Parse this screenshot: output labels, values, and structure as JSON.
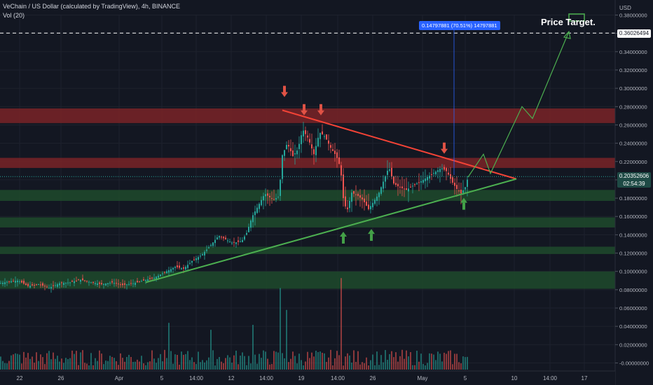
{
  "header": {
    "title": "VeChain / US Dollar (calculated by TradingView), 4h, BINANCE",
    "indicator": "Vol (20)"
  },
  "currency": "USD",
  "annotations": {
    "price_target_label": "Price Target.",
    "target_price": "0.36026494",
    "measure_label": "0.14797881 (70.51%) 14797881",
    "last_price": "0.20352606",
    "countdown": "02:54:39"
  },
  "colors": {
    "background": "#131722",
    "up": "#26a69a",
    "down": "#ef5350",
    "resistance_zone": "#7a2327",
    "support_zone": "#1f4a2c",
    "trend_upper": "#f44336",
    "trend_lower": "#4caf50",
    "projection": "#4caf50"
  },
  "chart_data": {
    "type": "candlestick",
    "y_axis": {
      "min": -0.005,
      "max": 0.39,
      "ticks": [
        "0.38000000",
        "0.36000000",
        "0.34000000",
        "0.32000000",
        "0.30000000",
        "0.28000000",
        "0.26000000",
        "0.24000000",
        "0.22000000",
        "0.20000000",
        "0.18000000",
        "0.16000000",
        "0.14000000",
        "0.12000000",
        "0.10000000",
        "0.08000000",
        "0.06000000",
        "0.04000000",
        "0.02000000",
        "-0.00000000"
      ]
    },
    "x_ticks": [
      "22",
      "26",
      "Apr",
      "5",
      "14:00",
      "12",
      "14:00",
      "19",
      "14:00",
      "26",
      "May",
      "5",
      "10",
      "14:00",
      "17"
    ],
    "zones": [
      {
        "kind": "resistance",
        "from": 0.262,
        "to": 0.278
      },
      {
        "kind": "resistance",
        "from": 0.213,
        "to": 0.224
      },
      {
        "kind": "support",
        "from": 0.177,
        "to": 0.189
      },
      {
        "kind": "support",
        "from": 0.148,
        "to": 0.159
      },
      {
        "kind": "support",
        "from": 0.119,
        "to": 0.127
      },
      {
        "kind": "support",
        "from": 0.081,
        "to": 0.1
      }
    ],
    "key_levels": {
      "target": 0.36026494,
      "last": 0.20352606
    },
    "price_path": [
      [
        0,
        0.087
      ],
      [
        12,
        0.089
      ],
      [
        26,
        0.09
      ],
      [
        40,
        0.084
      ],
      [
        55,
        0.086
      ],
      [
        70,
        0.082
      ],
      [
        85,
        0.087
      ],
      [
        100,
        0.088
      ],
      [
        115,
        0.091
      ],
      [
        130,
        0.088
      ],
      [
        145,
        0.086
      ],
      [
        160,
        0.088
      ],
      [
        175,
        0.085
      ],
      [
        190,
        0.087
      ],
      [
        205,
        0.09
      ],
      [
        220,
        0.093
      ],
      [
        235,
        0.099
      ],
      [
        250,
        0.105
      ],
      [
        262,
        0.103
      ],
      [
        275,
        0.112
      ],
      [
        288,
        0.118
      ],
      [
        300,
        0.128
      ],
      [
        312,
        0.139
      ],
      [
        322,
        0.135
      ],
      [
        332,
        0.131
      ],
      [
        345,
        0.133
      ],
      [
        352,
        0.142
      ],
      [
        360,
        0.16
      ],
      [
        368,
        0.171
      ],
      [
        378,
        0.185
      ],
      [
        390,
        0.178
      ],
      [
        398,
        0.182
      ],
      [
        403,
        0.227
      ],
      [
        410,
        0.24
      ],
      [
        418,
        0.226
      ],
      [
        425,
        0.233
      ],
      [
        432,
        0.255
      ],
      [
        440,
        0.245
      ],
      [
        448,
        0.228
      ],
      [
        456,
        0.252
      ],
      [
        464,
        0.247
      ],
      [
        472,
        0.235
      ],
      [
        480,
        0.226
      ],
      [
        486,
        0.213
      ],
      [
        490,
        0.18
      ],
      [
        495,
        0.165
      ],
      [
        502,
        0.186
      ],
      [
        510,
        0.183
      ],
      [
        518,
        0.178
      ],
      [
        526,
        0.168
      ],
      [
        533,
        0.176
      ],
      [
        540,
        0.184
      ],
      [
        548,
        0.2
      ],
      [
        555,
        0.214
      ],
      [
        562,
        0.196
      ],
      [
        570,
        0.192
      ],
      [
        580,
        0.189
      ],
      [
        590,
        0.194
      ],
      [
        600,
        0.198
      ],
      [
        610,
        0.203
      ],
      [
        620,
        0.208
      ],
      [
        630,
        0.213
      ],
      [
        638,
        0.209
      ],
      [
        645,
        0.198
      ],
      [
        652,
        0.19
      ],
      [
        658,
        0.185
      ],
      [
        664,
        0.192
      ],
      [
        668,
        0.203
      ]
    ],
    "volume": {
      "max": 0.095,
      "spikes": [
        [
          400,
          0.082
        ],
        [
          488,
          0.092
        ],
        [
          410,
          0.06
        ],
        [
          242,
          0.047
        ],
        [
          360,
          0.045
        ],
        [
          300,
          0.04
        ]
      ]
    },
    "trendlines": {
      "upper": [
        [
          403,
          0.276
        ],
        [
          737,
          0.201
        ]
      ],
      "lower": [
        [
          208,
          0.088
        ],
        [
          737,
          0.201
        ]
      ]
    },
    "projection": [
      [
        668,
        0.203
      ],
      [
        690,
        0.228
      ],
      [
        700,
        0.207
      ],
      [
        745,
        0.28
      ],
      [
        760,
        0.267
      ],
      [
        812,
        0.362
      ]
    ],
    "arrows_down": [
      [
        406,
        0.292
      ],
      [
        434,
        0.272
      ],
      [
        458,
        0.272
      ],
      [
        634,
        0.23
      ]
    ],
    "arrows_up": [
      [
        490,
        0.138
      ],
      [
        530,
        0.141
      ],
      [
        662,
        0.175
      ]
    ]
  }
}
